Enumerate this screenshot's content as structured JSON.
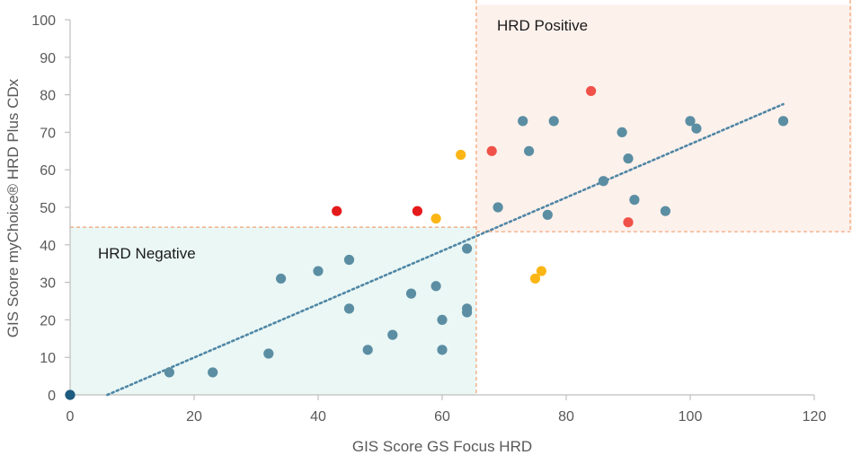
{
  "chart_data": {
    "type": "scatter",
    "title": "",
    "xlabel": "GIS Score GS Focus HRD",
    "ylabel": "GIS Score myChoice® HRD Plus CDx",
    "xlim": [
      0,
      120
    ],
    "ylim": [
      0,
      100
    ],
    "x_ticks": [
      "0",
      "20",
      "40",
      "60",
      "80",
      "100",
      "120"
    ],
    "y_ticks": [
      "0",
      "10",
      "20",
      "30",
      "40",
      "50",
      "60",
      "70",
      "80",
      "90",
      "100"
    ],
    "grid": false,
    "colors": {
      "teal": "#5b8ea3",
      "red": "#e51a1a",
      "orange": "#f0524a",
      "yellow": "#fbb616",
      "origin": "#1e5b80",
      "trend": "#4f86a5",
      "negative_fill": "#eaf7f5",
      "positive_fill": "#fdf1ec",
      "threshold": "#f0a070",
      "axis": "#bfbfbf"
    },
    "regions": [
      {
        "label": "HRD Negative",
        "x_range": [
          0,
          65.5
        ],
        "y_range": [
          0,
          44.7
        ],
        "fill": "negative_fill"
      },
      {
        "label": "HRD Positive",
        "x_range": [
          65.5,
          127
        ],
        "y_range": [
          43.5,
          104
        ],
        "fill": "positive_fill"
      }
    ],
    "thresholds": {
      "vertical_x": 65.5,
      "horizontal_negative_y": 44.7,
      "horizontal_positive_y": 43.5
    },
    "trendline": {
      "x": [
        6,
        115
      ],
      "y": [
        0,
        77.5
      ],
      "style": "dotted"
    },
    "series": [
      {
        "name": "teal",
        "color": "teal",
        "points": [
          [
            16,
            6
          ],
          [
            23,
            6
          ],
          [
            32,
            11
          ],
          [
            34,
            31
          ],
          [
            40,
            33
          ],
          [
            45,
            36
          ],
          [
            45,
            23
          ],
          [
            48,
            12
          ],
          [
            52,
            16
          ],
          [
            55,
            27
          ],
          [
            59,
            29
          ],
          [
            60,
            20
          ],
          [
            60,
            12
          ],
          [
            64,
            23
          ],
          [
            64,
            22
          ],
          [
            64,
            39
          ],
          [
            69,
            50
          ],
          [
            73,
            73
          ],
          [
            74,
            65
          ],
          [
            77,
            48
          ],
          [
            78,
            73
          ],
          [
            86,
            57
          ],
          [
            89,
            70
          ],
          [
            90,
            63
          ],
          [
            91,
            52
          ],
          [
            96,
            49
          ],
          [
            100,
            73
          ],
          [
            101,
            71
          ],
          [
            115,
            73
          ]
        ]
      },
      {
        "name": "red",
        "color": "red",
        "points": [
          [
            43,
            49
          ],
          [
            56,
            49
          ]
        ]
      },
      {
        "name": "orange",
        "color": "orange",
        "points": [
          [
            68,
            65
          ],
          [
            84,
            81
          ],
          [
            90,
            46
          ]
        ]
      },
      {
        "name": "yellow",
        "color": "yellow",
        "points": [
          [
            59,
            47
          ],
          [
            63,
            64
          ],
          [
            75,
            31
          ],
          [
            76,
            33
          ]
        ]
      },
      {
        "name": "origin",
        "color": "origin",
        "points": [
          [
            0,
            0
          ]
        ]
      }
    ]
  }
}
